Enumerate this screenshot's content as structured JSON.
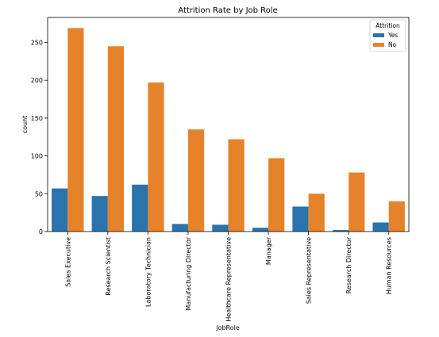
{
  "chart_data": {
    "type": "bar",
    "title": "Attrition Rate by Job Role",
    "xlabel": "JobRole",
    "ylabel": "count",
    "ylim": [
      0,
      283
    ],
    "yticks": [
      0,
      50,
      100,
      150,
      200,
      250
    ],
    "grid": false,
    "legend": {
      "title": "Attrition",
      "position": "top-right"
    },
    "categories": [
      "Sales Executive",
      "Research Scientist",
      "Laboratory Technician",
      "Manufacturing Director",
      "Healthcare Representative",
      "Manager",
      "Sales Representative",
      "Research Director",
      "Human Resources"
    ],
    "series": [
      {
        "name": "Yes",
        "color": "#2a73ad",
        "values": [
          57,
          47,
          62,
          10,
          9,
          5,
          33,
          2,
          12
        ]
      },
      {
        "name": "No",
        "color": "#e6832a",
        "values": [
          269,
          245,
          197,
          135,
          122,
          97,
          50,
          78,
          40
        ]
      }
    ]
  }
}
